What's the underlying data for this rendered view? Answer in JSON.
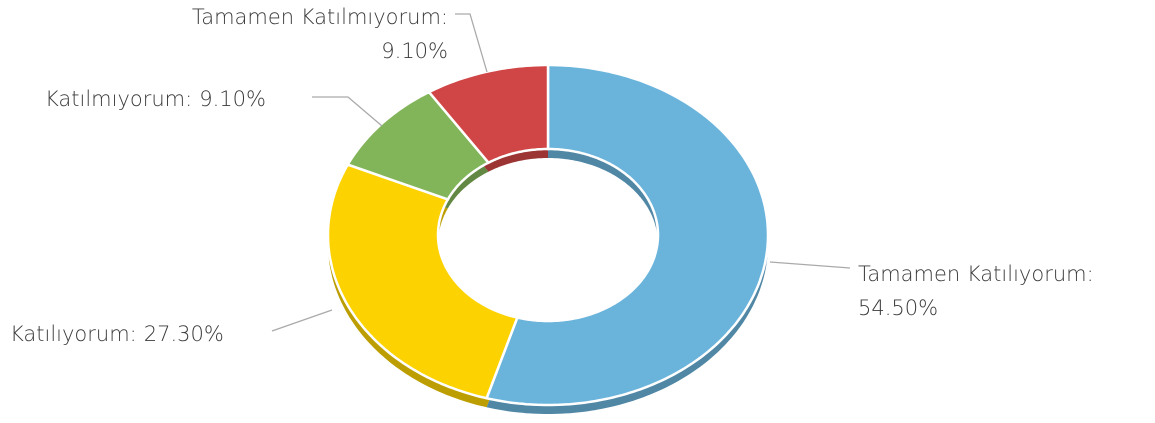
{
  "chart_data": {
    "type": "donut",
    "categories": [
      "Tamamen Katılıyorum:",
      "Katılıyorum:",
      "Katılmıyorum:",
      "Tamamen Katılmıyorum:"
    ],
    "values": [
      54.5,
      27.3,
      9.1,
      9.1
    ],
    "value_labels": [
      "54.50%",
      "27.30%",
      "9.10%",
      "9.10%"
    ],
    "colors": [
      "#6ab4dc",
      "#fcd200",
      "#82b55a",
      "#d04545"
    ]
  }
}
